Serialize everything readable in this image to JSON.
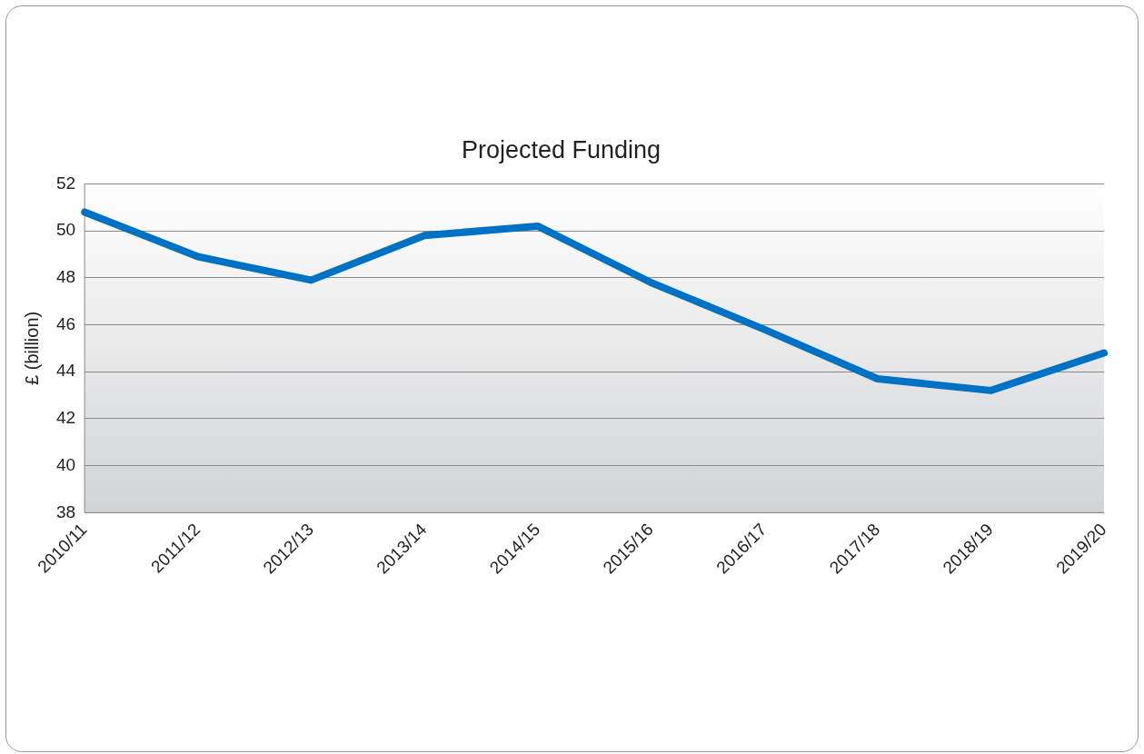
{
  "chart_data": {
    "type": "line",
    "title": "Projected Funding",
    "ylabel": "£ (billion)",
    "categories": [
      "2010/11",
      "2011/12",
      "2012/13",
      "2013/14",
      "2014/15",
      "2015/16",
      "2016/17",
      "2017/18",
      "2018/19",
      "2019/20"
    ],
    "series": [
      {
        "color": "#0072c6",
        "values": [
          50.8,
          48.9,
          47.9,
          49.8,
          50.2,
          47.8,
          45.8,
          43.7,
          43.2,
          44.8
        ]
      }
    ],
    "ylim": [
      38,
      52
    ],
    "yticks": [
      38,
      40,
      42,
      44,
      46,
      48,
      50,
      52
    ],
    "grid": "y",
    "legend": false,
    "marker": "none",
    "line_style": "solid"
  }
}
